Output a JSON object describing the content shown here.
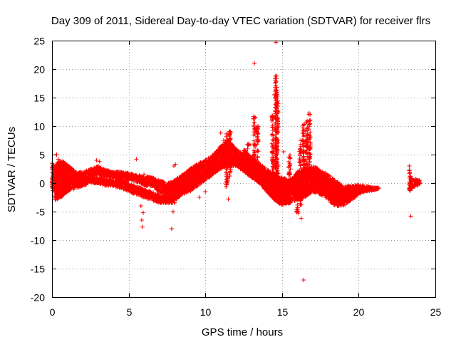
{
  "chart_data": {
    "type": "scatter",
    "title": "Day 309 of 2011, Sidereal Day-to-day VTEC variation (SDTVAR) for receiver flrs",
    "xlabel": "GPS time / hours",
    "ylabel": "SDTVAR / TECUs",
    "xlim": [
      0,
      25
    ],
    "ylim": [
      -20,
      25
    ],
    "grid": true,
    "marker": "+",
    "x_ticks": [
      0,
      5,
      10,
      15,
      20,
      25
    ],
    "x_tick_labels": [
      "0",
      "5",
      "10",
      "15",
      "20",
      "25"
    ],
    "y_ticks": [
      -20,
      -15,
      -10,
      -5,
      0,
      5,
      10,
      15,
      20,
      25
    ],
    "y_tick_labels": [
      "-20",
      "-15",
      "-10",
      "-5",
      "0",
      "5",
      "10",
      "15",
      "20",
      "25"
    ],
    "colors": {
      "points": "#ff0000",
      "grid": "#a0a0a0",
      "axis": "#000000"
    },
    "series": [
      {
        "name": "SDTVAR",
        "note": "dense band traced as (hour, lower, upper) envelopes in TECU",
        "bands": [
          [
            [
              0.0,
              -1.5,
              3.5
            ],
            [
              0.2,
              -1.0,
              3.0
            ],
            [
              0.5,
              -0.5,
              4.0
            ],
            [
              1.0,
              0.0,
              3.5
            ],
            [
              1.5,
              0.5,
              2.0
            ],
            [
              2.0,
              0.5,
              2.0
            ],
            [
              2.5,
              1.0,
              2.5
            ],
            [
              3.0,
              1.5,
              3.0
            ],
            [
              3.5,
              1.0,
              2.5
            ],
            [
              4.0,
              1.0,
              2.0
            ],
            [
              4.5,
              0.5,
              2.0
            ],
            [
              5.0,
              0.5,
              1.8
            ],
            [
              5.5,
              0.2,
              1.5
            ],
            [
              6.0,
              -0.5,
              1.2
            ],
            [
              6.5,
              -0.5,
              1.0
            ],
            [
              7.0,
              -1.5,
              0.5
            ],
            [
              7.5,
              -2.5,
              0.0
            ],
            [
              8.0,
              -3.0,
              0.5
            ],
            [
              8.5,
              -2.0,
              1.5
            ],
            [
              9.0,
              -1.5,
              2.5
            ],
            [
              9.5,
              -0.5,
              3.5
            ],
            [
              10.0,
              0.5,
              4.0
            ],
            [
              10.5,
              1.5,
              5.0
            ],
            [
              11.0,
              2.5,
              6.5
            ],
            [
              11.5,
              3.0,
              7.5
            ],
            [
              12.0,
              3.0,
              6.0
            ],
            [
              12.5,
              2.0,
              5.0
            ],
            [
              13.0,
              1.0,
              4.0
            ],
            [
              13.5,
              0.0,
              3.5
            ],
            [
              14.0,
              -1.5,
              2.5
            ],
            [
              14.5,
              -3.0,
              1.5
            ],
            [
              15.0,
              -4.0,
              1.0
            ],
            [
              15.5,
              -3.5,
              0.0
            ],
            [
              16.0,
              -3.0,
              2.0
            ],
            [
              16.5,
              -2.5,
              2.5
            ],
            [
              17.0,
              -1.5,
              3.0
            ],
            [
              17.5,
              -2.0,
              2.5
            ],
            [
              18.0,
              -3.0,
              1.5
            ],
            [
              18.5,
              -4.0,
              0.5
            ],
            [
              19.0,
              -4.0,
              -0.5
            ],
            [
              19.5,
              -3.0,
              -0.5
            ],
            [
              20.0,
              -2.0,
              -0.2
            ],
            [
              20.5,
              -1.5,
              -0.5
            ],
            [
              21.0,
              -1.2,
              -0.8
            ],
            [
              21.3,
              -1.0,
              -0.8
            ]
          ],
          [
            [
              0.2,
              -3.0,
              0.0
            ],
            [
              0.6,
              -2.5,
              -0.5
            ],
            [
              1.0,
              -1.5,
              0.0
            ],
            [
              1.5,
              -1.0,
              0.5
            ],
            [
              2.0,
              -0.5,
              0.5
            ],
            [
              2.5,
              0.0,
              1.0
            ],
            [
              3.0,
              0.0,
              1.0
            ],
            [
              3.5,
              -0.5,
              0.8
            ],
            [
              4.0,
              -0.5,
              0.5
            ],
            [
              4.5,
              -1.0,
              0.5
            ],
            [
              5.0,
              -1.5,
              0.0
            ],
            [
              5.5,
              -2.0,
              -0.5
            ],
            [
              6.0,
              -2.5,
              -1.0
            ],
            [
              6.5,
              -3.0,
              -1.5
            ],
            [
              7.0,
              -3.5,
              -2.0
            ],
            [
              7.5,
              -3.5,
              -2.5
            ],
            [
              8.0,
              -3.5,
              -2.0
            ]
          ],
          [
            [
              12.5,
              3.0,
              6.0
            ],
            [
              13.0,
              1.5,
              4.5
            ],
            [
              13.5,
              0.0,
              3.0
            ],
            [
              14.0,
              -1.0,
              2.0
            ],
            [
              14.5,
              -2.5,
              1.5
            ],
            [
              15.0,
              -3.0,
              1.0
            ],
            [
              15.5,
              -1.5,
              0.5
            ],
            [
              16.0,
              0.5,
              1.5
            ],
            [
              16.5,
              0.5,
              1.5
            ],
            [
              17.0,
              0.0,
              1.0
            ],
            [
              17.5,
              -0.5,
              0.5
            ],
            [
              18.0,
              -1.5,
              0.0
            ],
            [
              18.5,
              -2.5,
              -1.0
            ],
            [
              19.0,
              -3.0,
              -1.5
            ],
            [
              19.5,
              -2.5,
              -1.5
            ],
            [
              20.0,
              -1.5,
              -0.5
            ]
          ],
          [
            [
              23.3,
              -1.5,
              2.5
            ],
            [
              23.5,
              -1.0,
              0.5
            ],
            [
              23.8,
              -0.5,
              0.8
            ],
            [
              24.0,
              -0.2,
              0.5
            ]
          ]
        ],
        "spikes": [
          [
            11.4,
            -1.0,
            9.0
          ],
          [
            11.6,
            1.0,
            9.5
          ],
          [
            12.8,
            3.0,
            7.0
          ],
          [
            13.2,
            1.0,
            12.0
          ],
          [
            13.4,
            2.0,
            10.0
          ],
          [
            14.4,
            0.0,
            12.0
          ],
          [
            14.6,
            -2.0,
            19.0
          ],
          [
            14.7,
            -1.0,
            17.0
          ],
          [
            15.1,
            -3.0,
            -1.0
          ],
          [
            15.5,
            -2.0,
            5.0
          ],
          [
            16.0,
            -5.5,
            -3.0
          ],
          [
            16.2,
            -4.0,
            8.0
          ],
          [
            16.4,
            2.0,
            10.5
          ],
          [
            16.6,
            3.0,
            11.0
          ],
          [
            16.8,
            3.0,
            12.5
          ]
        ],
        "outliers": [
          [
            0.3,
            5.0
          ],
          [
            0.4,
            4.2
          ],
          [
            2.9,
            4.0
          ],
          [
            3.1,
            3.8
          ],
          [
            5.5,
            4.2
          ],
          [
            5.8,
            -4.0
          ],
          [
            5.85,
            -6.5
          ],
          [
            5.9,
            -7.7
          ],
          [
            5.95,
            -5.2
          ],
          [
            6.0,
            1.5
          ],
          [
            7.8,
            -8.0
          ],
          [
            7.9,
            -5.0
          ],
          [
            7.95,
            3.0
          ],
          [
            8.05,
            3.3
          ],
          [
            11.0,
            8.8
          ],
          [
            11.2,
            7.5
          ],
          [
            11.5,
            -2.8
          ],
          [
            13.2,
            21.0
          ],
          [
            14.6,
            24.7
          ],
          [
            14.5,
            15.5
          ],
          [
            14.7,
            11.5
          ],
          [
            15.1,
            5.5
          ],
          [
            16.25,
            -6.2
          ],
          [
            16.4,
            -17.0
          ],
          [
            16.5,
            2.8
          ],
          [
            23.4,
            -5.8
          ],
          [
            23.3,
            3.0
          ],
          [
            9.6,
            -2.5
          ],
          [
            10.0,
            -1.5
          ]
        ]
      }
    ]
  }
}
